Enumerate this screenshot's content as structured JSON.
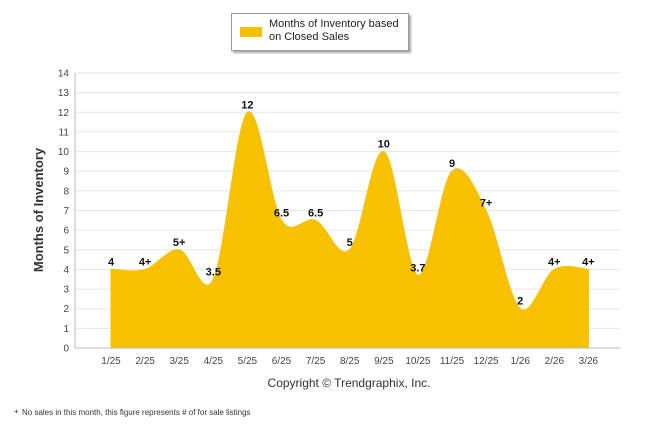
{
  "chart_data": {
    "type": "area",
    "ylabel": "Months of Inventory",
    "xlabel": "",
    "ylim": [
      0,
      14
    ],
    "yticks": [
      0,
      1,
      2,
      3,
      4,
      5,
      6,
      7,
      8,
      9,
      10,
      11,
      12,
      13,
      14
    ],
    "grid": true,
    "legend_position": "top-center",
    "categories": [
      "1/25",
      "2/25",
      "3/25",
      "4/25",
      "5/25",
      "6/25",
      "7/25",
      "8/25",
      "9/25",
      "10/25",
      "11/25",
      "12/25",
      "1/26",
      "2/26",
      "3/26"
    ],
    "series": [
      {
        "name": "Months of Inventory based on Closed Sales",
        "color": "#f7c100",
        "values": [
          4,
          4,
          5,
          3.5,
          12,
          6.5,
          6.5,
          5,
          10,
          3.7,
          9,
          7,
          2,
          4,
          4
        ],
        "labels": [
          "4",
          "4+",
          "5+",
          "3.5",
          "12",
          "6.5",
          "6.5",
          "5",
          "10",
          "3.7",
          "9",
          "7+",
          "2",
          "4+",
          "4+"
        ]
      }
    ]
  },
  "copyright": "Copyright © Trendgraphix, Inc.",
  "footnote": "No sales in this month, this figure represents # of for sale listings",
  "footnote_marker": "+"
}
